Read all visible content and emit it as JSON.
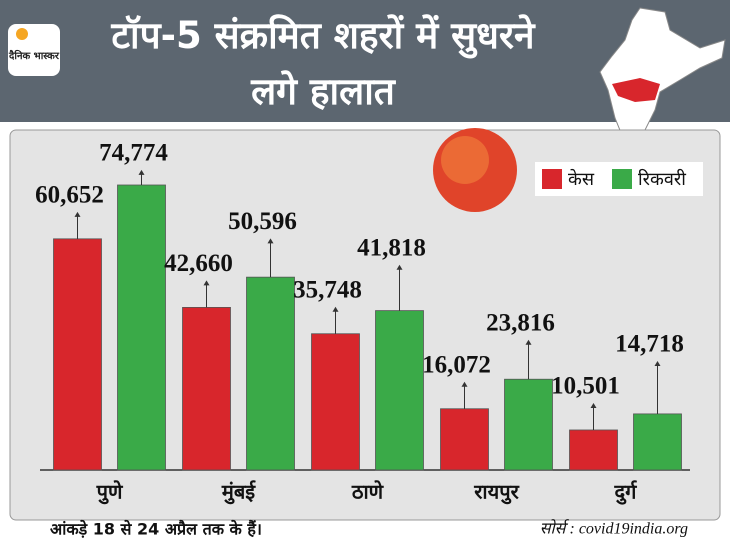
{
  "chart_data": {
    "type": "bar",
    "logo": "दैनिक भास्कर",
    "title": "टॉप-5 संक्रमित शहरों में सुधरने लगे हालात",
    "categories": [
      "पुणे",
      "मुंबई",
      "ठाणे",
      "रायपुर",
      "दुर्ग"
    ],
    "series": [
      {
        "name": "केस",
        "color": "#d8262c",
        "values": [
          60652,
          42660,
          35748,
          16072,
          10501
        ],
        "value_labels": [
          "60,652",
          "42,660",
          "35,748",
          "16,072",
          "10,501"
        ]
      },
      {
        "name": "रिकवरी",
        "color": "#3aaa48",
        "values": [
          74774,
          50596,
          41818,
          23816,
          14718
        ],
        "value_labels": [
          "74,774",
          "50,596",
          "41,818",
          "23,816",
          "14,718"
        ]
      }
    ],
    "legend": "top-right",
    "grid": false,
    "note": "आंकड़े 18 से 24 अप्रैल तक के हैं।",
    "source": "सोर्स : covid19india.org"
  }
}
